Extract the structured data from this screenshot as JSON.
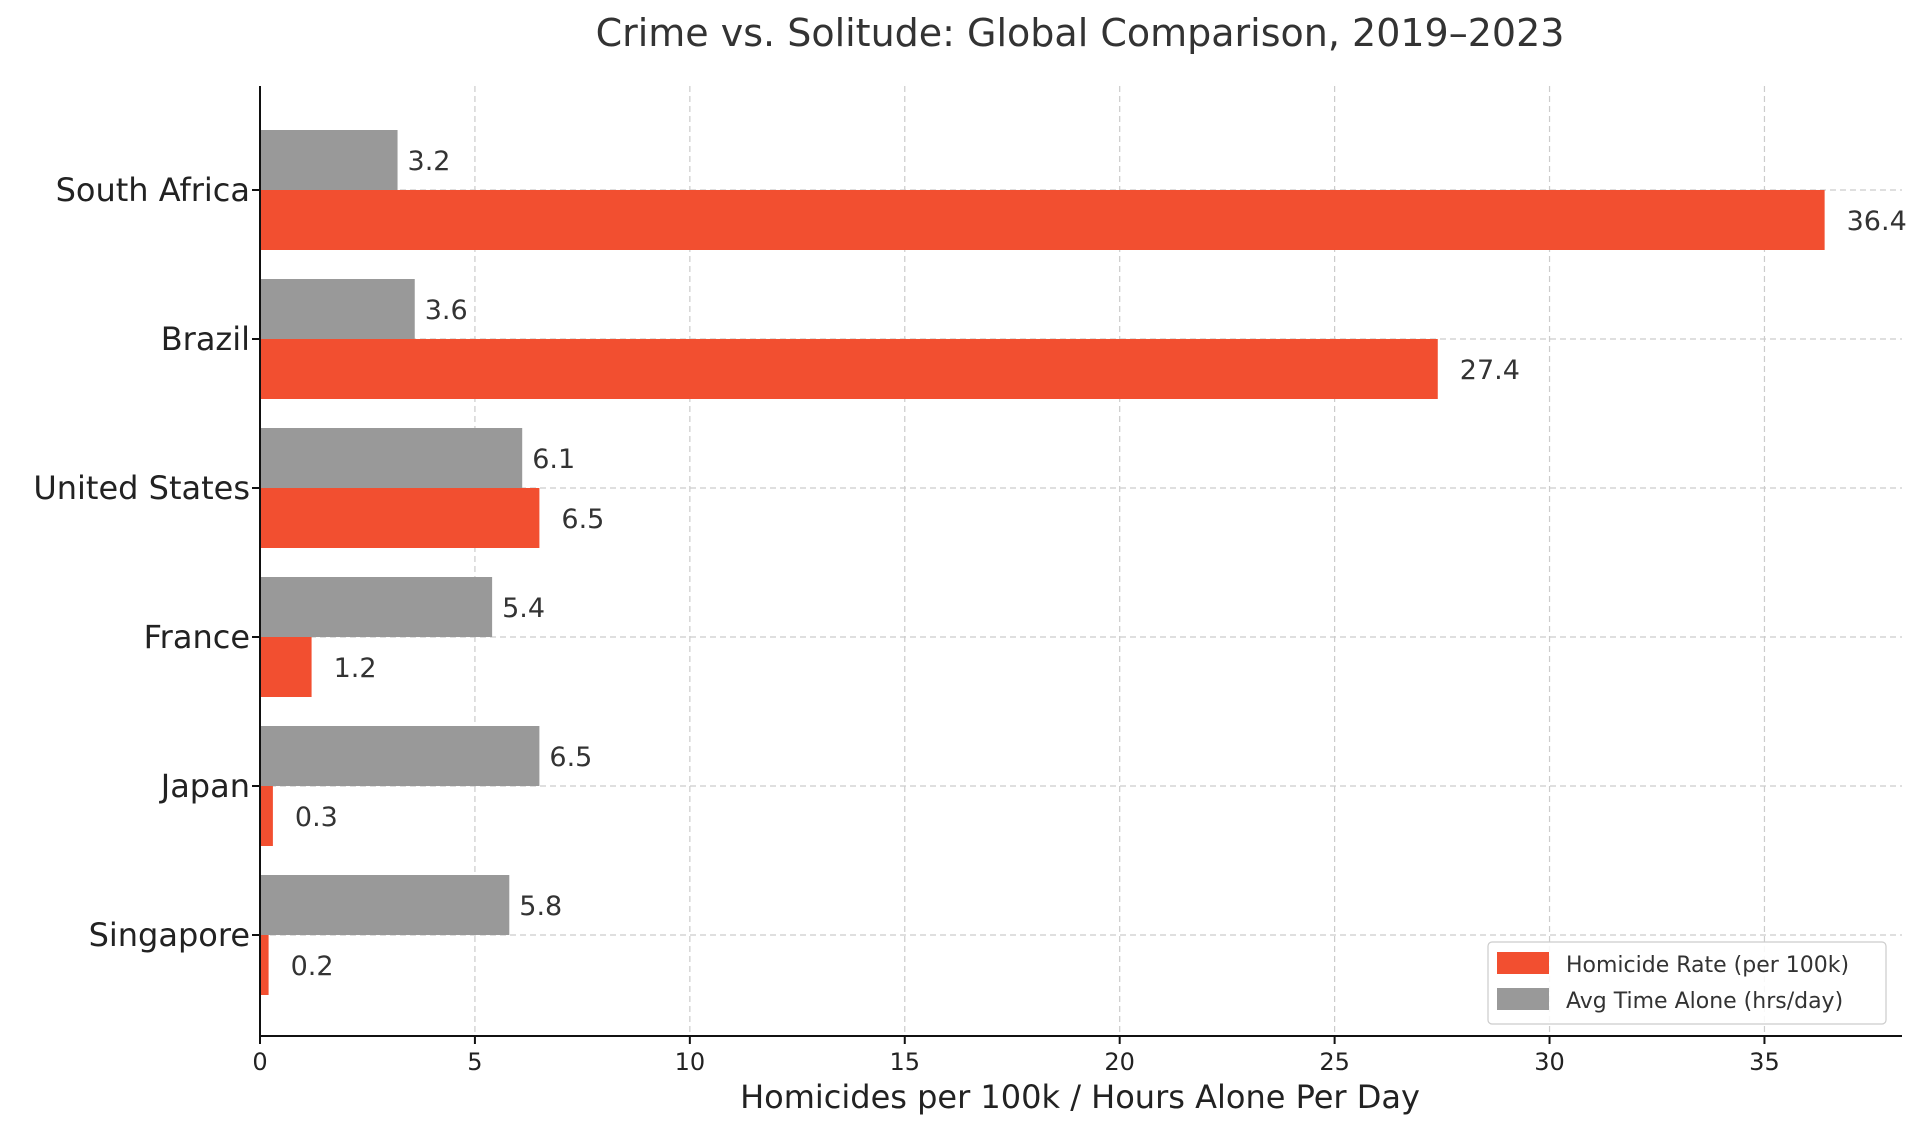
{
  "chart_data": {
    "type": "bar",
    "orientation": "horizontal",
    "title": "Crime vs. Solitude: Global Comparison, 2019–2023",
    "xlabel": "Homicides per 100k / Hours Alone Per Day",
    "ylabel": "",
    "xlim": [
      0,
      38.2
    ],
    "xticks": [
      0,
      5,
      10,
      15,
      20,
      25,
      30,
      35
    ],
    "grid": true,
    "legend_position": "bottom-right",
    "categories": [
      "South Africa",
      "Brazil",
      "United States",
      "France",
      "Japan",
      "Singapore"
    ],
    "series": [
      {
        "name": "Homicide Rate (per 100k)",
        "color": "#F24F30",
        "values": [
          36.4,
          27.4,
          6.5,
          1.2,
          0.3,
          0.2
        ],
        "labels": [
          "36.4",
          "27.4",
          "6.5",
          "1.2",
          "0.3",
          "0.2"
        ]
      },
      {
        "name": "Avg Time Alone (hrs/day)",
        "color": "#999999",
        "values": [
          3.2,
          3.6,
          6.1,
          5.4,
          6.5,
          5.8
        ],
        "labels": [
          "3.2",
          "3.6",
          "6.1",
          "5.4",
          "6.5",
          "5.8"
        ]
      }
    ]
  }
}
